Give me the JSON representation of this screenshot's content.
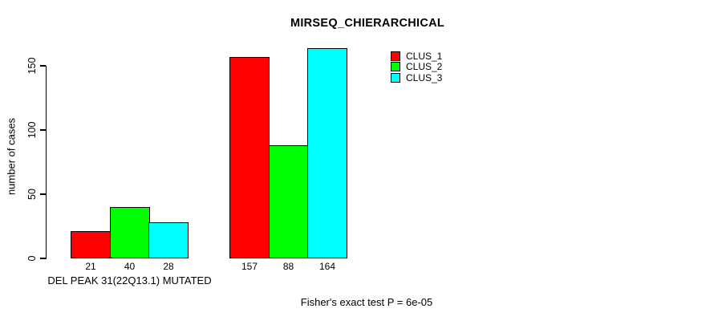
{
  "title": "MIRSEQ_CHIERARCHICAL",
  "y_axis": {
    "label": "number of cases",
    "tick_labels": [
      "0",
      "50",
      "100",
      "150"
    ]
  },
  "footer": "Fisher's exact test P = 6e-05",
  "legend": {
    "items": [
      {
        "label": "CLUS_1",
        "color": "#FF0000"
      },
      {
        "label": "CLUS_2",
        "color": "#00FF00"
      },
      {
        "label": "CLUS_3",
        "color": "#00FFFF"
      }
    ]
  },
  "colors": {
    "bar_border": "#000000",
    "text": "#000000",
    "background": "#FFFFFF"
  },
  "chart_data": {
    "type": "bar",
    "title": "MIRSEQ_CHIERARCHICAL",
    "xlabel": "",
    "ylabel": "number of cases",
    "yticks": [
      0,
      50,
      100,
      150
    ],
    "ylim": [
      0,
      170
    ],
    "grid": false,
    "legend_position": "top-right",
    "series": [
      {
        "name": "CLUS_1",
        "color": "#FF0000"
      },
      {
        "name": "CLUS_2",
        "color": "#00FF00"
      },
      {
        "name": "CLUS_3",
        "color": "#00FFFF"
      }
    ],
    "groups": [
      {
        "label": "DEL PEAK 31(22Q13.1) MUTATED",
        "values": [
          21,
          40,
          28
        ]
      },
      {
        "label": "",
        "values": [
          157,
          88,
          164
        ]
      }
    ],
    "annotation": "Fisher's exact test P = 6e-05"
  }
}
